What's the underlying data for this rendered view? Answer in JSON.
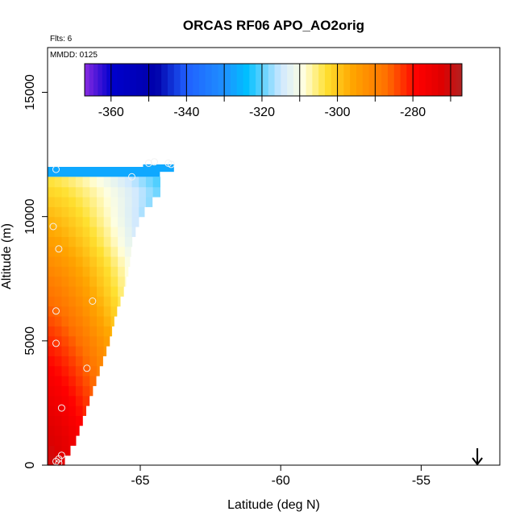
{
  "chart_data": {
    "type": "heatmap",
    "title": "ORCAS RF06 APO_AO2orig",
    "subtitle": "Flts: 6",
    "annotation": "MMDD: 0125",
    "xlabel": "Latitude (deg N)",
    "ylabel": "Altitude (m)",
    "xlim": [
      -68.3,
      -52.2
    ],
    "ylim": [
      0,
      16800
    ],
    "x_ticks": [
      -65,
      -60,
      -55
    ],
    "x_tick_labels": [
      "-65",
      "-60",
      "-55"
    ],
    "y_ticks": [
      0,
      5000,
      10000,
      15000
    ],
    "y_tick_labels": [
      "0",
      "5000",
      "10000",
      "15000"
    ],
    "colorbar": {
      "range": [
        -367,
        -267
      ],
      "ticks": [
        -360,
        -340,
        -320,
        -300,
        -280
      ],
      "tick_labels": [
        "-360",
        "-340",
        "-320",
        "-300",
        "-280"
      ],
      "bands": [
        -370,
        -360,
        -350,
        -340,
        -330,
        -320,
        -310,
        -300,
        -290,
        -280,
        -270,
        -265
      ],
      "colors": [
        {
          "v": -367,
          "c": "#8a2be2"
        },
        {
          "v": -360,
          "c": "#0000cd"
        },
        {
          "v": -348,
          "c": "#0000aa"
        },
        {
          "v": -340,
          "c": "#2060ff"
        },
        {
          "v": -330,
          "c": "#1e90ff"
        },
        {
          "v": -324,
          "c": "#00bfff"
        },
        {
          "v": -315,
          "c": "#cfe8ff"
        },
        {
          "v": -309,
          "c": "#ffffe0"
        },
        {
          "v": -303,
          "c": "#ffe030"
        },
        {
          "v": -296,
          "c": "#ffa500"
        },
        {
          "v": -287,
          "c": "#ff7000"
        },
        {
          "v": -279,
          "c": "#ff0000"
        },
        {
          "v": -272,
          "c": "#dd0000"
        },
        {
          "v": -267,
          "c": "#b22222"
        }
      ]
    },
    "field": {
      "lat_start": -68.3,
      "lat_step": 0.25,
      "alt_step": 400,
      "top_alt": 11600,
      "top_layer_value": -327,
      "upper_bin": {
        "lat_range": [
          -64.9,
          -63.8
        ],
        "alt_range": [
          11800,
          12100
        ],
        "value": -327
      },
      "right_edge_lat_by_alt": [
        [
          0,
          -67.8
        ],
        [
          1000,
          -67.3
        ],
        [
          2000,
          -67.0
        ],
        [
          3000,
          -66.7
        ],
        [
          4000,
          -66.4
        ],
        [
          5000,
          -66.1
        ],
        [
          6000,
          -65.9
        ],
        [
          7000,
          -65.6
        ],
        [
          8000,
          -65.4
        ],
        [
          9000,
          -65.3
        ],
        [
          10000,
          -65.0
        ],
        [
          11000,
          -64.3
        ],
        [
          11600,
          -64.3
        ]
      ]
    },
    "flight_points": [
      {
        "x": -68.0,
        "y": 11900
      },
      {
        "x": -68.1,
        "y": 9600
      },
      {
        "x": -67.9,
        "y": 8700
      },
      {
        "x": -68.0,
        "y": 6200
      },
      {
        "x": -68.0,
        "y": 4900
      },
      {
        "x": -66.9,
        "y": 3900
      },
      {
        "x": -67.8,
        "y": 2300
      },
      {
        "x": -67.8,
        "y": 400
      },
      {
        "x": -67.9,
        "y": 250
      },
      {
        "x": -68.0,
        "y": 150
      },
      {
        "x": -67.9,
        "y": 80
      },
      {
        "x": -66.7,
        "y": 6600
      },
      {
        "x": -65.3,
        "y": 11600
      },
      {
        "x": -64.7,
        "y": 12150
      },
      {
        "x": -64.5,
        "y": 12200
      },
      {
        "x": -64.0,
        "y": 12150
      },
      {
        "x": -63.9,
        "y": 12100
      }
    ],
    "arrow_lat": -53.0
  }
}
